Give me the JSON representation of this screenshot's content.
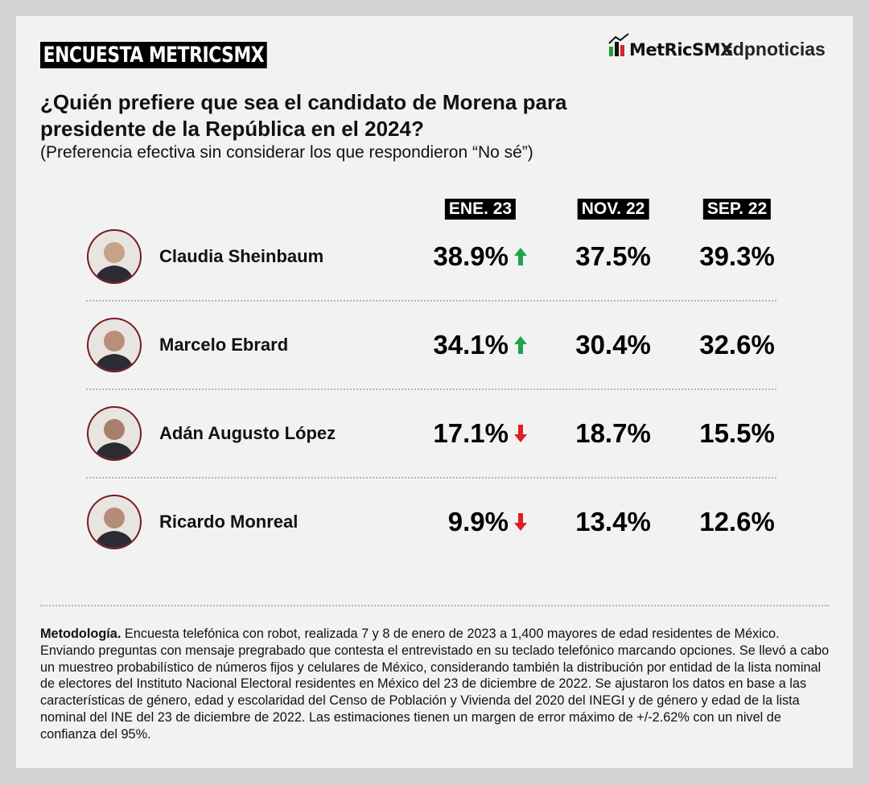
{
  "header": {
    "badge": "ENCUESTA METRICSMX",
    "logo": "MetRicSMX",
    "partner": "sdpnoticias",
    "title_lines": [
      "¿Quién prefiere que sea el candidato de Morena para",
      "presidente de la República en el 2024?"
    ],
    "subtitle": "(Preferencia efectiva sin considerar los que respondieron “No sé”)"
  },
  "table": {
    "columns": [
      "ENE. 23",
      "NOV. 22",
      "SEP. 22"
    ],
    "rows": [
      {
        "name": "Claudia Sheinbaum",
        "values": [
          "38.9%",
          "37.5%",
          "39.3%"
        ],
        "trend": "up"
      },
      {
        "name": "Marcelo Ebrard",
        "values": [
          "34.1%",
          "30.4%",
          "32.6%"
        ],
        "trend": "up"
      },
      {
        "name": "Adán Augusto López",
        "values": [
          "17.1%",
          "18.7%",
          "15.5%"
        ],
        "trend": "down"
      },
      {
        "name": "Ricardo Monreal",
        "values": [
          "9.9%",
          "13.4%",
          "12.6%"
        ],
        "trend": "down"
      }
    ]
  },
  "footnote": {
    "label": "Metodología.",
    "text": "Encuesta telefónica con robot, realizada 7 y 8 de enero de 2023 a 1,400 mayores de edad residentes de México. Enviando preguntas con mensaje pregrabado que contesta el entrevistado en su teclado telefónico marcando opciones. Se llevó a cabo un muestreo probabilístico de números fijos y celulares de México, considerando también la distribución por entidad de la lista nominal de electores del Instituto Nacional Electoral residentes en México del 23 de diciembre de 2022. Se ajustaron los datos en base a las características de género, edad y escolaridad del Censo de Población y Vivienda del 2020 del INEGI y de género y edad de la lista nominal del INE del 23 de diciembre de 2022. Las estimaciones tienen un margen de error máximo de +/-2.62% con un nivel de confianza del 95%."
  }
}
